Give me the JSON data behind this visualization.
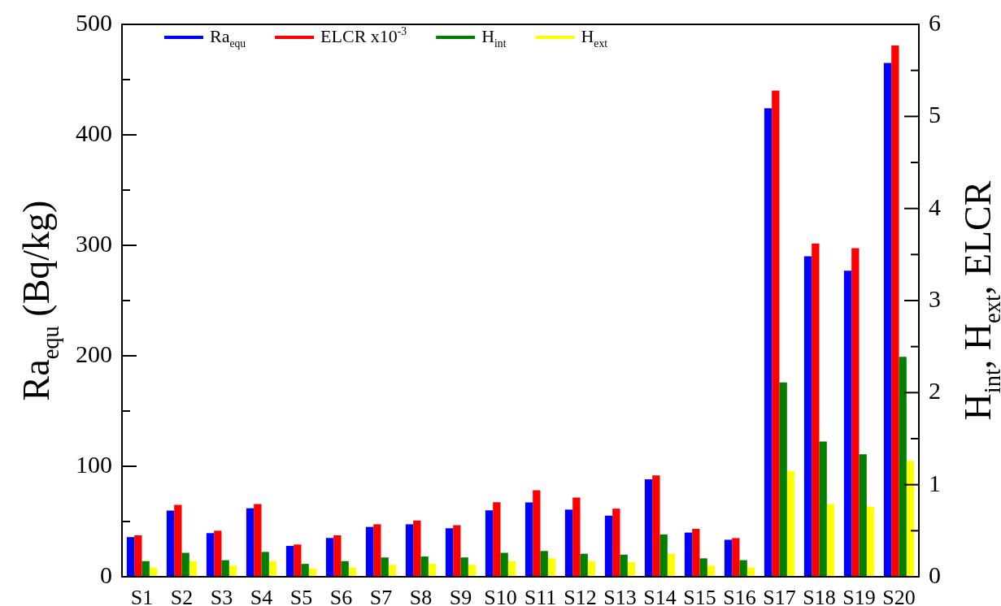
{
  "chart_data": {
    "type": "bar",
    "categories": [
      "S1",
      "S2",
      "S3",
      "S4",
      "S5",
      "S6",
      "S7",
      "S8",
      "S9",
      "S10",
      "S11",
      "S12",
      "S13",
      "S14",
      "S15",
      "S16",
      "S17",
      "S18",
      "S19",
      "S20"
    ],
    "series": [
      {
        "name": "Ra$_{equ}$",
        "color": "#0000ff",
        "axis": "y",
        "values": [
          35.9,
          59.9,
          39.5,
          62,
          27.9,
          35.1,
          45.1,
          47.5,
          43.9,
          60.1,
          67.2,
          60.8,
          55.3,
          88.2,
          40,
          33.5,
          424,
          290,
          277,
          465
        ]
      },
      {
        "name": "ELCR x10$^{-3}$",
        "color": "#ff0000",
        "axis": "y2",
        "values": [
          0.45,
          0.78,
          0.5,
          0.79,
          0.35,
          0.45,
          0.57,
          0.61,
          0.56,
          0.81,
          0.94,
          0.86,
          0.74,
          1.1,
          0.52,
          0.42,
          5.28,
          3.62,
          3.57,
          5.77
        ]
      },
      {
        "name": "H$_{int}$",
        "color": "#008000",
        "axis": "y2",
        "values": [
          0.17,
          0.26,
          0.18,
          0.27,
          0.14,
          0.17,
          0.21,
          0.22,
          0.21,
          0.26,
          0.28,
          0.25,
          0.24,
          0.46,
          0.2,
          0.18,
          2.11,
          1.47,
          1.33,
          2.39
        ]
      },
      {
        "name": "H$_{ext}$",
        "color": "#ffff00",
        "axis": "y2",
        "values": [
          0.1,
          0.17,
          0.12,
          0.17,
          0.09,
          0.1,
          0.13,
          0.14,
          0.13,
          0.17,
          0.2,
          0.17,
          0.16,
          0.25,
          0.12,
          0.1,
          1.15,
          0.79,
          0.76,
          1.26
        ]
      }
    ],
    "ylabel": "Ra$_{equ}$ (Bq/kg)",
    "y2label": "H$_{int}$, H$_{ext}$, ELCR",
    "ylim": [
      0,
      500
    ],
    "yticks": [
      0,
      {
        "value": 50,
        "label": null
      },
      100,
      {
        "value": 150,
        "label": null
      },
      200,
      {
        "value": 250,
        "label": null
      },
      300,
      {
        "value": 350,
        "label": null
      },
      400,
      {
        "value": 450,
        "label": null
      },
      500
    ],
    "y2lim": [
      0,
      6
    ],
    "y2ticks": [
      0,
      {
        "value": 0.5,
        "label": null
      },
      1,
      {
        "value": 1.5,
        "label": null
      },
      2,
      {
        "value": 2.5,
        "label": null
      },
      3,
      {
        "value": 3.5,
        "label": null
      },
      4,
      {
        "value": 4.5,
        "label": null
      },
      5,
      {
        "value": 5.5,
        "label": null
      },
      6
    ],
    "legend": "top",
    "grid": false
  }
}
